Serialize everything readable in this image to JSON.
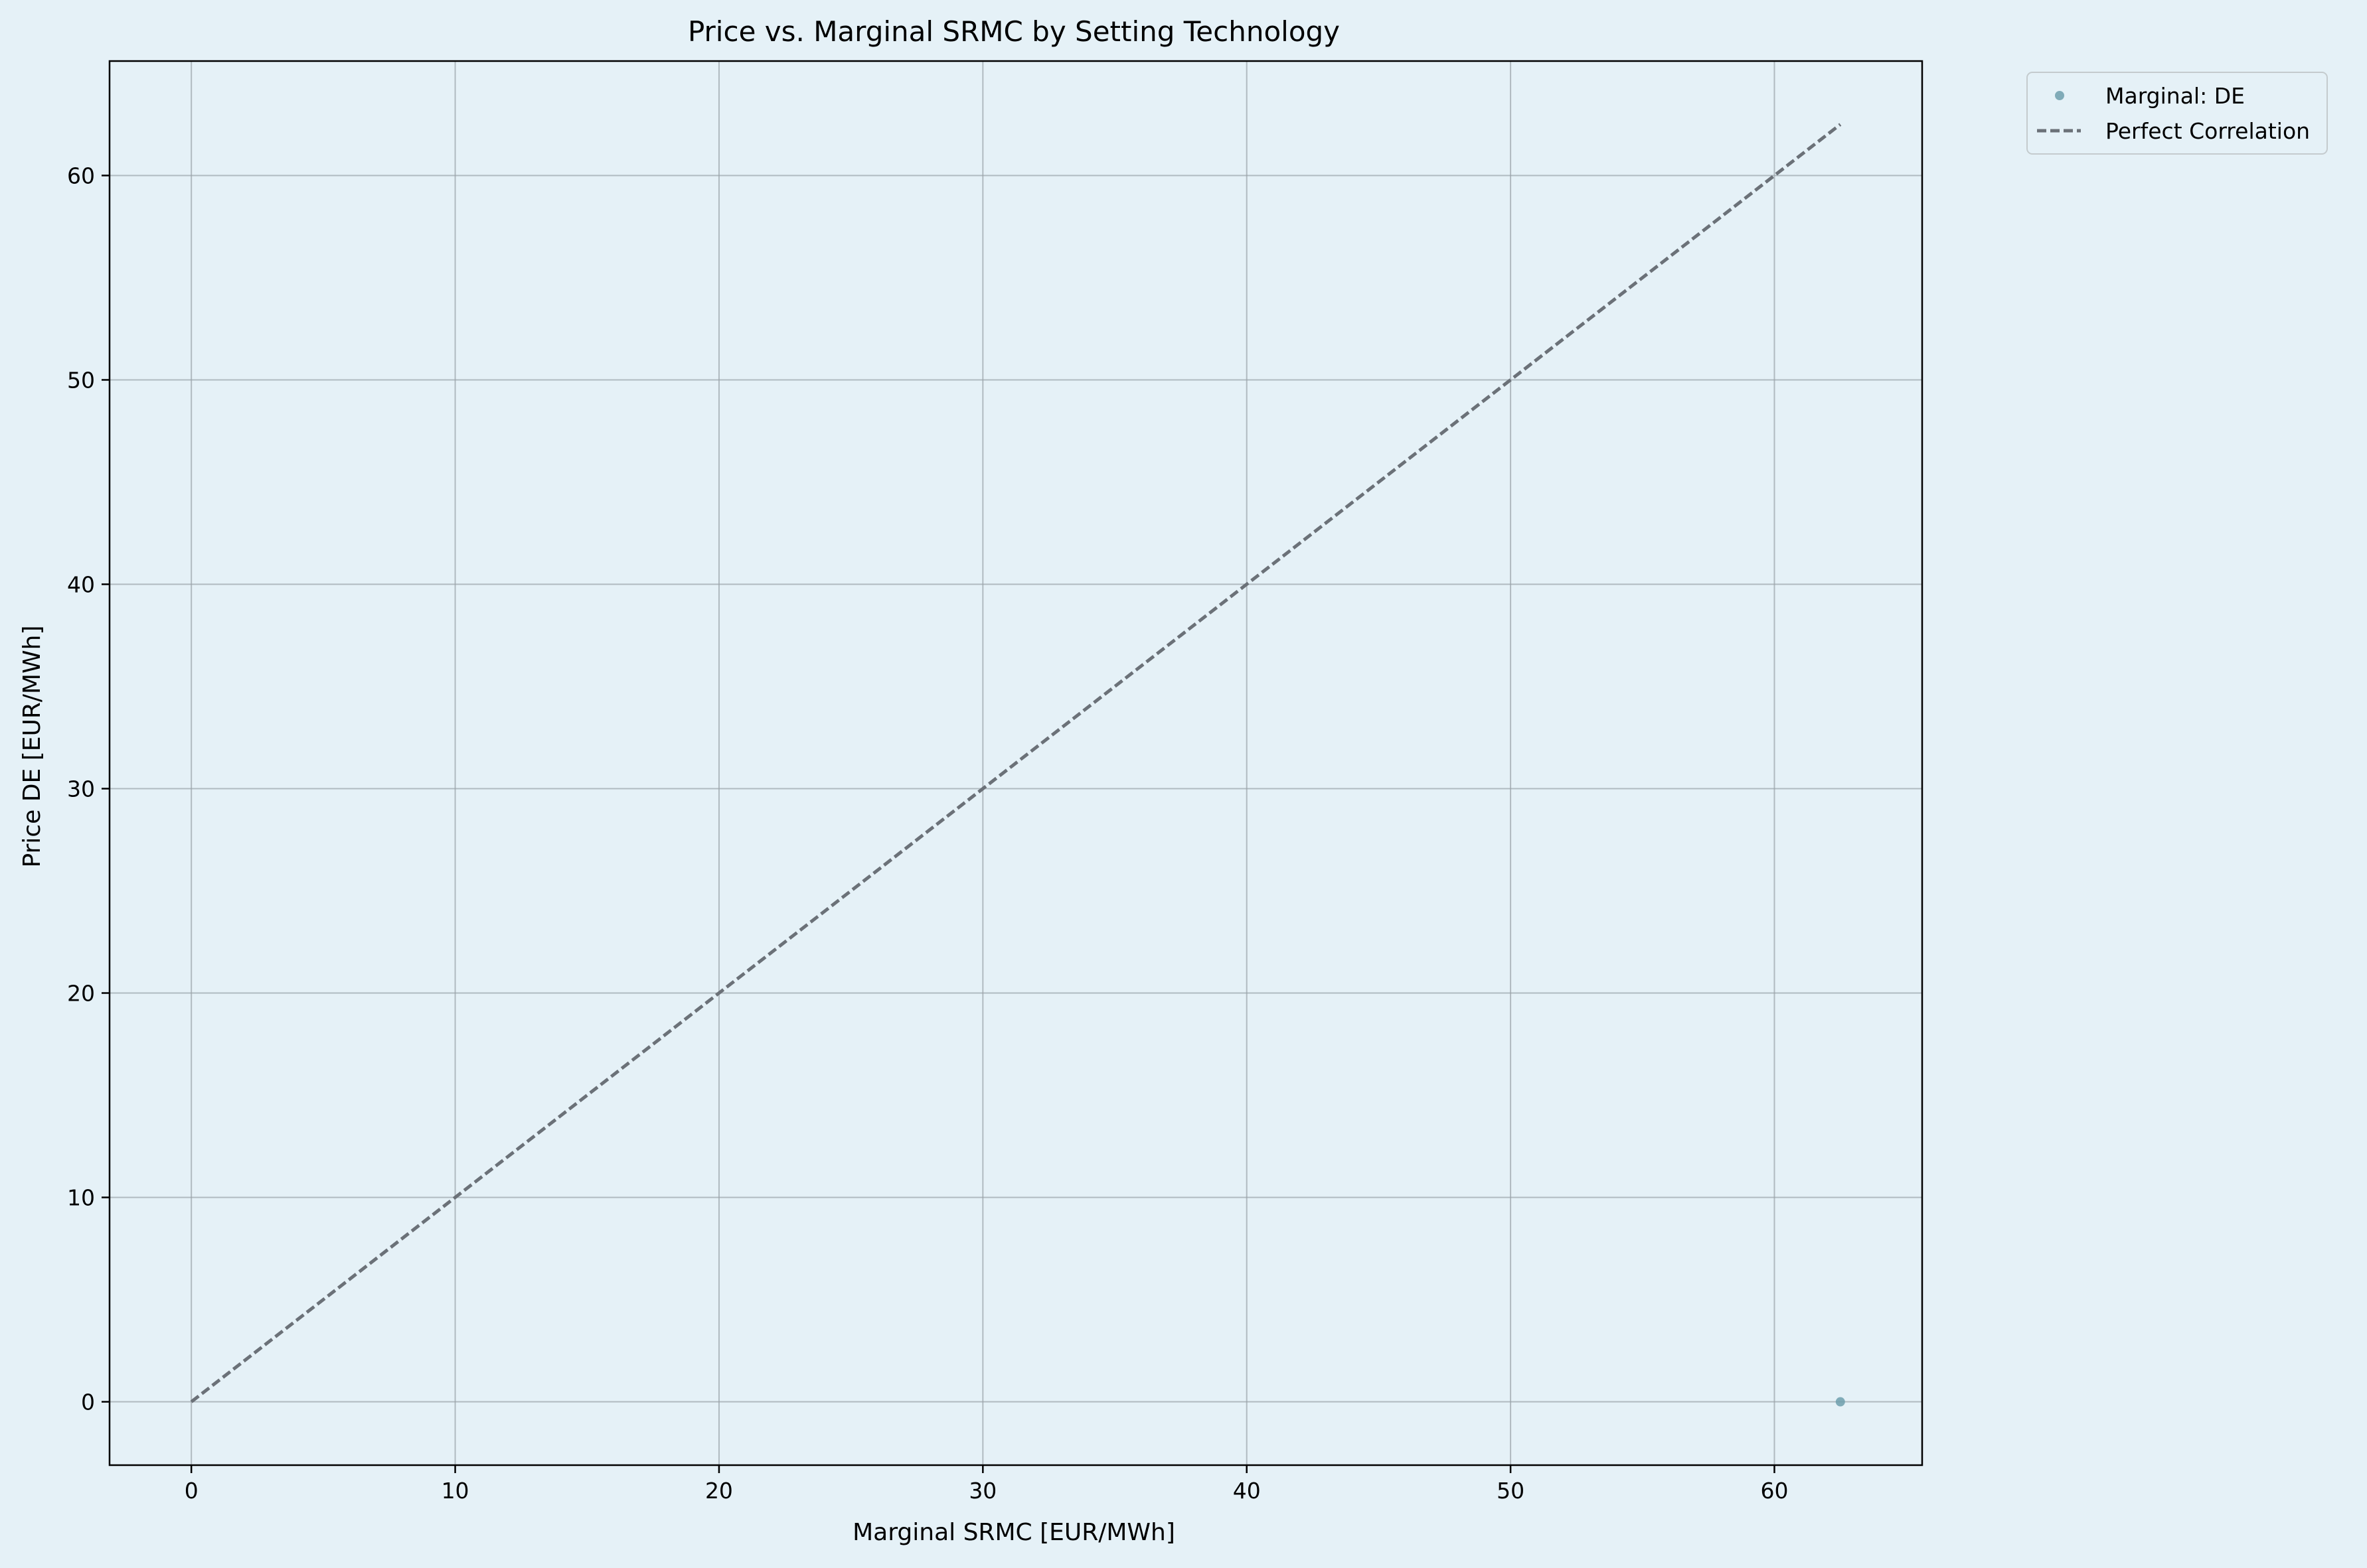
{
  "chart_data": {
    "type": "scatter",
    "title": "Price vs. Marginal SRMC by Setting Technology",
    "xlabel": "Marginal SRMC [EUR/MWh]",
    "ylabel": "Price DE [EUR/MWh]",
    "xlim": [
      -3.1,
      65.6
    ],
    "ylim": [
      -3.1,
      65.6
    ],
    "xticks": [
      0,
      10,
      20,
      30,
      40,
      50,
      60
    ],
    "yticks": [
      0,
      10,
      20,
      30,
      40,
      50,
      60
    ],
    "grid": true,
    "legend_position": "outside-upper-right",
    "series": [
      {
        "name": "Marginal: DE",
        "type": "scatter",
        "color": "#6e9fad",
        "points": [
          {
            "x": 62.5,
            "y": 0
          }
        ]
      },
      {
        "name": "Perfect Correlation",
        "type": "line",
        "style": "dashed",
        "color": "#6b7178",
        "points": [
          {
            "x": 0,
            "y": 0
          },
          {
            "x": 62.5,
            "y": 62.5
          }
        ]
      }
    ]
  },
  "colors": {
    "background": "#e5f1f7",
    "grid": "#9aa3a8",
    "axis": "#000000"
  }
}
